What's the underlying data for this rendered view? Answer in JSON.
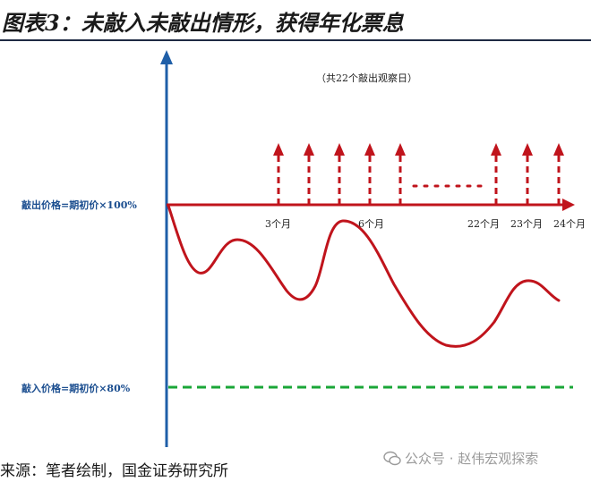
{
  "header": {
    "title": "图表3：未敲入未敲出情形，获得年化票息"
  },
  "diagram": {
    "note": "（共22个敲出观察日）",
    "knock_out_label": "敲出价格=期初价×100%",
    "knock_in_label": "敲入价格=期初价×80%",
    "month_labels": [
      "3个月",
      "6个月",
      "22个月",
      "23个月",
      "24个月"
    ],
    "colors": {
      "axis": "#1f5fa8",
      "knock_out": "#c0141c",
      "knock_in": "#1aa637",
      "price_path": "#c0141c"
    }
  },
  "footer": {
    "source": "来源：笔者绘制，国金证券研究所",
    "watermark": "公众号 · 赵伟宏观探索"
  }
}
